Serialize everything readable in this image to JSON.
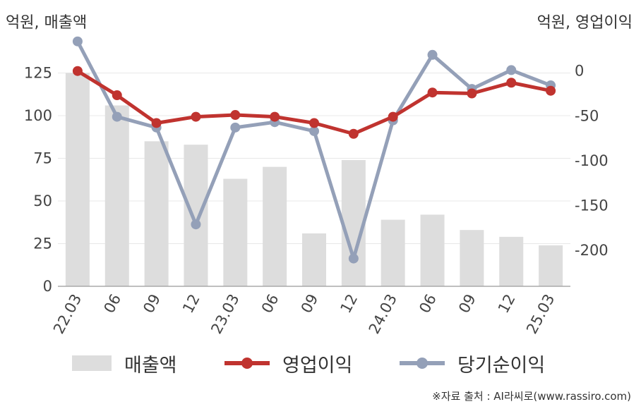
{
  "unit_left": "억원, 매출액",
  "unit_right": "억원, 영업이익",
  "source": "※자료 출처 : AI라씨로(www.rassiro.com)",
  "colors": {
    "bar": "#dddddd",
    "operating": "#c0332f",
    "net": "#94a0b8",
    "grid": "#e8e8e8",
    "axis": "#aaaaaa"
  },
  "legend": {
    "revenue": "매출액",
    "operating": "영업이익",
    "net": "당기순이익"
  },
  "chart_data": {
    "type": "bar+line",
    "categories": [
      "22.03",
      "06",
      "09",
      "12",
      "23.03",
      "06",
      "09",
      "12",
      "24.03",
      "06",
      "09",
      "12",
      "25.03"
    ],
    "left_axis": {
      "ticks": [
        0,
        25,
        50,
        75,
        100,
        125
      ],
      "range": [
        0,
        143
      ]
    },
    "right_axis": {
      "ticks": [
        0,
        -50,
        -100,
        -150,
        -200
      ],
      "range": [
        -240,
        32
      ]
    },
    "series": [
      {
        "name": "매출액",
        "kind": "bar",
        "axis": "left",
        "values": [
          125,
          106,
          85,
          83,
          63,
          70,
          31,
          74,
          39,
          42,
          33,
          29,
          24
        ]
      },
      {
        "name": "영업이익",
        "kind": "line",
        "axis": "right",
        "values": [
          0,
          -27,
          -58,
          -51,
          -49,
          -51,
          -58,
          -70,
          -51,
          -24,
          -25,
          -13,
          -22
        ]
      },
      {
        "name": "당기순이익",
        "kind": "line",
        "axis": "right",
        "values": [
          33,
          -51,
          -63,
          -171,
          -63,
          -57,
          -67,
          -209,
          -55,
          18,
          -20,
          1,
          -16
        ]
      }
    ]
  }
}
